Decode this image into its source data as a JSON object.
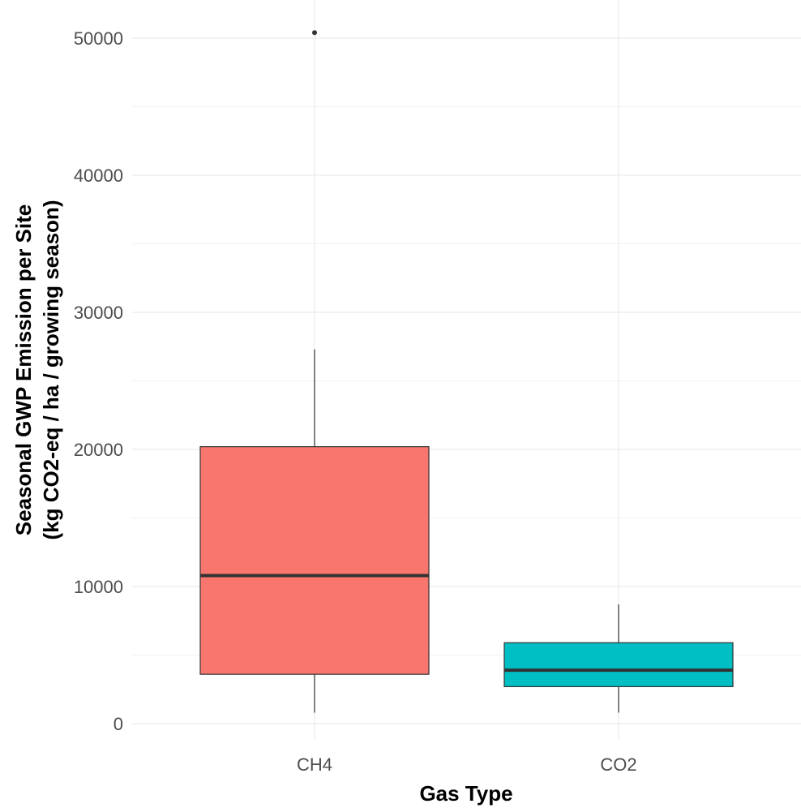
{
  "chart_data": {
    "type": "boxplot",
    "title": "",
    "xlabel": "Gas Type",
    "ylabel_lines": [
      "Seasonal GWP Emission per Site",
      "(kg CO2-eq / ha / growing season)"
    ],
    "ylim": [
      -1000,
      53000
    ],
    "yticks": [
      0,
      10000,
      20000,
      30000,
      40000,
      50000
    ],
    "yminor": [
      5000,
      15000,
      25000,
      35000,
      45000
    ],
    "categories": [
      "CH4",
      "CO2"
    ],
    "boxes": [
      {
        "category": "CH4",
        "lower_whisker": 800,
        "q1": 3600,
        "median": 10800,
        "q3": 20200,
        "upper_whisker": 27300,
        "outliers": [
          50400
        ],
        "color": "#F8766D"
      },
      {
        "category": "CO2",
        "lower_whisker": 800,
        "q1": 2700,
        "median": 3900,
        "q3": 5900,
        "upper_whisker": 8700,
        "outliers": [],
        "color": "#00BFC4"
      }
    ],
    "grid": true,
    "legend": "none"
  }
}
